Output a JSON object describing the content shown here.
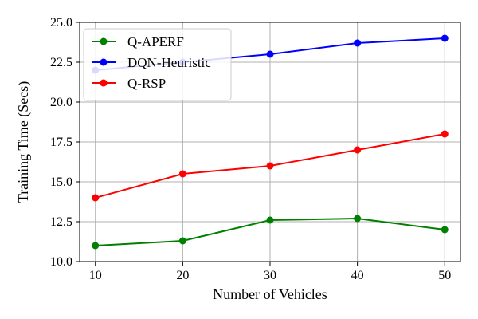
{
  "chart_data": {
    "type": "line",
    "title": "",
    "xlabel": "Number of Vehicles",
    "ylabel": "Training Time (Secs)",
    "x": [
      10,
      20,
      30,
      40,
      50
    ],
    "xticks": [
      10,
      20,
      30,
      40,
      50
    ],
    "yticks": [
      10.0,
      12.5,
      15.0,
      17.5,
      20.0,
      22.5,
      25.0
    ],
    "xlim": [
      8.2,
      51.8
    ],
    "ylim": [
      10.0,
      25.0
    ],
    "grid": true,
    "legend_position": "top-left",
    "series": [
      {
        "name": "Q-APERF",
        "color": "#008000",
        "values": [
          11.0,
          11.3,
          12.6,
          12.7,
          12.0
        ]
      },
      {
        "name": "DQN-Heuristic",
        "color": "#0000ff",
        "values": [
          22.0,
          22.5,
          23.0,
          23.7,
          24.0
        ]
      },
      {
        "name": "Q-RSP",
        "color": "#ff0000",
        "values": [
          14.0,
          15.5,
          16.0,
          17.0,
          18.0
        ]
      }
    ]
  }
}
